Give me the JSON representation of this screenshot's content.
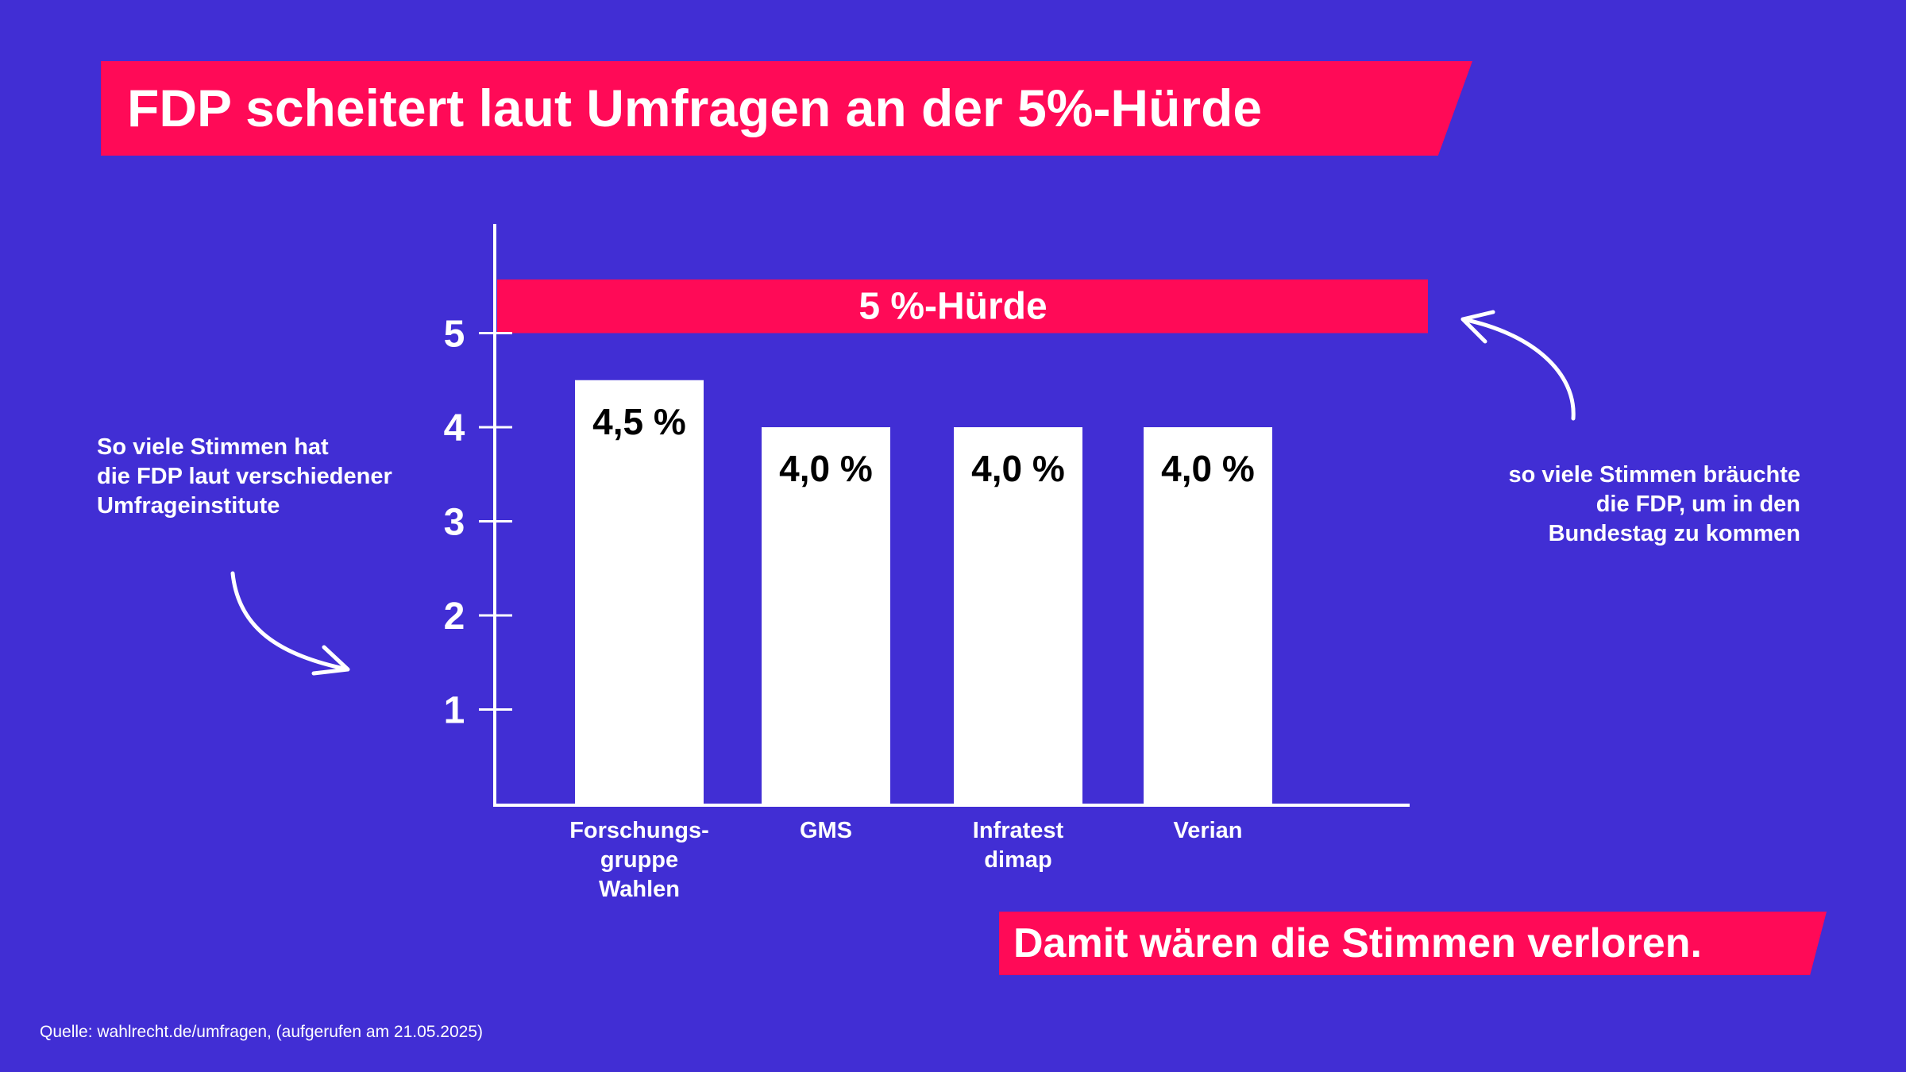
{
  "title": "FDP scheitert laut Umfragen an der 5%-Hürde",
  "footer_banner": "Damit wären die Stimmen verloren.",
  "note_left": [
    "So viele Stimmen hat",
    "die FDP laut verschiedener",
    "Umfrageinstitute"
  ],
  "note_right": [
    "so viele Stimmen bräuchte",
    "die FDP, um in den",
    "Bundestag zu kommen"
  ],
  "source": "Quelle: wahlrecht.de/umfragen, (aufgerufen am 21.05.2025)",
  "colors": {
    "background": "#412ed4",
    "accent": "#ff0a57",
    "bars": "#ffffff"
  },
  "icons": {
    "left_arrow": "curved-arrow-right-down",
    "right_arrow": "curved-arrow-up-left"
  },
  "chart_data": {
    "type": "bar",
    "categories": [
      "Forschungs-\ngruppe\nWahlen",
      "GMS",
      "Infratest\ndimap",
      "Verian"
    ],
    "values": [
      4.5,
      4.0,
      4.0,
      4.0
    ],
    "data_labels": [
      "4,5 %",
      "4,0 %",
      "4,0 %",
      "4,0 %"
    ],
    "yticks": [
      1,
      2,
      3,
      4,
      5
    ],
    "ylim": [
      0,
      6
    ],
    "threshold": {
      "value": 5,
      "label": "5 %-Hürde"
    },
    "grid": false,
    "xlabel": "",
    "ylabel": ""
  }
}
